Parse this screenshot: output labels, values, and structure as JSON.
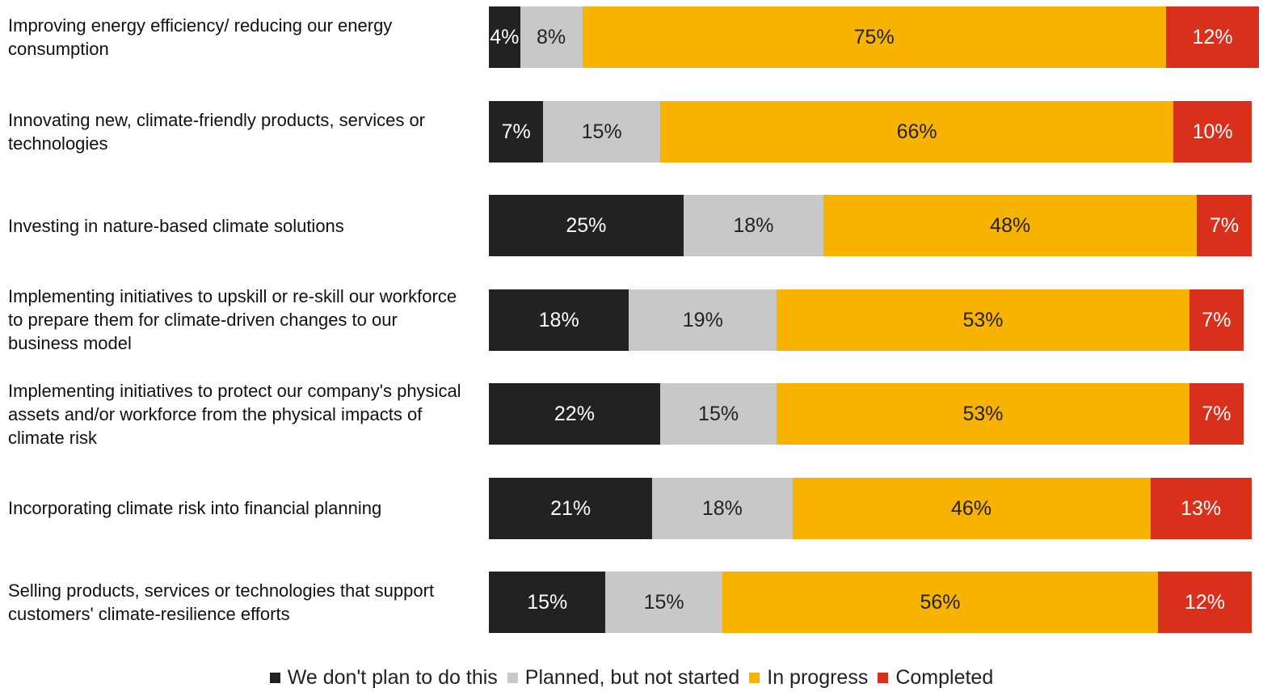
{
  "chart_data": {
    "type": "stacked-bar-horizontal",
    "categories": [
      "Improving energy efficiency/ reducing our energy consumption",
      "Innovating new, climate-friendly products, services or technologies",
      "Investing in nature-based climate solutions",
      "Implementing initiatives to upskill or re-skill our workforce to prepare them for climate-driven changes to our business model",
      "Implementing initiatives to protect our company's physical assets and/or workforce from the physical impacts of climate risk",
      "Incorporating climate risk into financial planning",
      "Selling products, services or technologies that support customers' climate-resilience efforts"
    ],
    "series": [
      {
        "name": "We don't plan to do this",
        "color": "#222222",
        "values": [
          4,
          7,
          25,
          18,
          22,
          21,
          15
        ],
        "value_labels": [
          "4%",
          "7%",
          "25%",
          "18%",
          "22%",
          "21%",
          "15%"
        ]
      },
      {
        "name": "Planned, but not started",
        "color": "#c8c8c8",
        "values": [
          8,
          15,
          18,
          19,
          15,
          18,
          15
        ],
        "value_labels": [
          "8%",
          "15%",
          "18%",
          "19%",
          "15%",
          "18%",
          "15%"
        ]
      },
      {
        "name": "In progress",
        "color": "#f8b300",
        "values": [
          75,
          66,
          48,
          53,
          53,
          46,
          56
        ],
        "value_labels": [
          "75%",
          "66%",
          "48%",
          "53%",
          "53%",
          "46%",
          "56%"
        ]
      },
      {
        "name": "Completed",
        "color": "#d9301c",
        "values": [
          12,
          10,
          7,
          7,
          7,
          13,
          12
        ],
        "value_labels": [
          "12%",
          "10%",
          "7%",
          "7%",
          "7%",
          "13%",
          "12%"
        ]
      }
    ],
    "legend": "bottom"
  }
}
